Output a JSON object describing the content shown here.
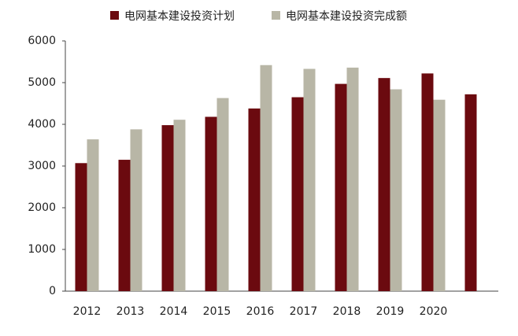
{
  "chart_data": {
    "type": "bar",
    "categories": [
      "2012",
      "2013",
      "2014",
      "2015",
      "2016",
      "2017",
      "2018",
      "2019",
      "2020",
      null
    ],
    "series": [
      {
        "name": "电网基本建设投资计划",
        "color": "#6b0a0f",
        "values": [
          3070,
          3150,
          3980,
          4180,
          4380,
          4650,
          4970,
          5110,
          5220,
          4720
        ]
      },
      {
        "name": "电网基本建设投资完成额",
        "color": "#b8b6a6",
        "values": [
          3640,
          3880,
          4110,
          4630,
          5420,
          5330,
          5360,
          4840,
          4590,
          null
        ]
      }
    ],
    "ylim": [
      0,
      6000
    ],
    "yticks": [
      0,
      1000,
      2000,
      3000,
      4000,
      5000,
      6000
    ],
    "grid": false,
    "legend": "top"
  }
}
